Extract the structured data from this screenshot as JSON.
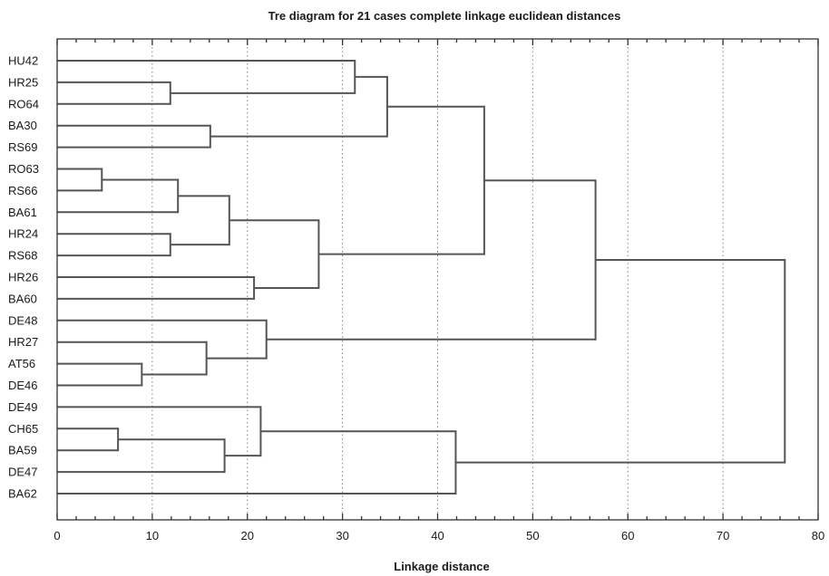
{
  "chart_data": {
    "type": "dendrogram",
    "title": "Tre diagram for 21 cases complete linkage euclidean distances",
    "xlabel": "Linkage distance",
    "ylabel": "",
    "xlim": [
      0,
      80
    ],
    "x_ticks": [
      "0",
      "10",
      "20",
      "30",
      "40",
      "50",
      "60",
      "70",
      "80"
    ],
    "grid": "vertical dotted",
    "leaves": [
      "HU42",
      "HR25",
      "RO64",
      "BA30",
      "RS69",
      "RO63",
      "RS66",
      "BA61",
      "HR24",
      "RS68",
      "HR26",
      "BA60",
      "DE48",
      "HR27",
      "AT56",
      "DE46",
      "DE49",
      "CH65",
      "BA59",
      "DE47",
      "BA62"
    ],
    "merges": [
      {
        "a": "RO63",
        "b": "RS66",
        "distance": 4.7
      },
      {
        "a": "CH65",
        "b": "BA59",
        "distance": 6.4
      },
      {
        "a": "AT56",
        "b": "DE46",
        "distance": 8.9
      },
      {
        "a": "HR25",
        "b": "RO64",
        "distance": 11.9
      },
      {
        "a": "HR24",
        "b": "RS68",
        "distance": 11.9
      },
      {
        "a": "RO63,RS66",
        "b": "BA61",
        "distance": 12.7
      },
      {
        "a": "HR27",
        "b": "AT56,DE46",
        "distance": 15.7
      },
      {
        "a": "BA30",
        "b": "RS69",
        "distance": 16.1
      },
      {
        "a": "CH65,BA59",
        "b": "DE47",
        "distance": 17.6
      },
      {
        "a": "RO63,RS66,BA61",
        "b": "HR24,RS68",
        "distance": 18.1
      },
      {
        "a": "HR26",
        "b": "BA60",
        "distance": 20.7
      },
      {
        "a": "DE49",
        "b": "CH65,BA59,DE47",
        "distance": 21.4
      },
      {
        "a": "DE48",
        "b": "HR27,AT56,DE46",
        "distance": 22.0
      },
      {
        "a": "RO63..RS68",
        "b": "HR26,BA60",
        "distance": 27.5
      },
      {
        "a": "HU42",
        "b": "HR25,RO64",
        "distance": 31.3
      },
      {
        "a": "HU42,HR25,RO64",
        "b": "BA30,RS69",
        "distance": 34.7
      },
      {
        "a": "DE49..DE47",
        "b": "BA62",
        "distance": 41.9
      },
      {
        "a": "HU42..RS69",
        "b": "RO63..BA60",
        "distance": 44.9
      },
      {
        "a": "HU42..BA60",
        "b": "DE48..DE46",
        "distance": 56.6
      },
      {
        "a": "HU42..DE46",
        "b": "DE49..BA62",
        "distance": 76.5
      }
    ],
    "colors": {
      "lines": "#555555",
      "grid": "#808080",
      "text": "#1a1a1a"
    }
  }
}
